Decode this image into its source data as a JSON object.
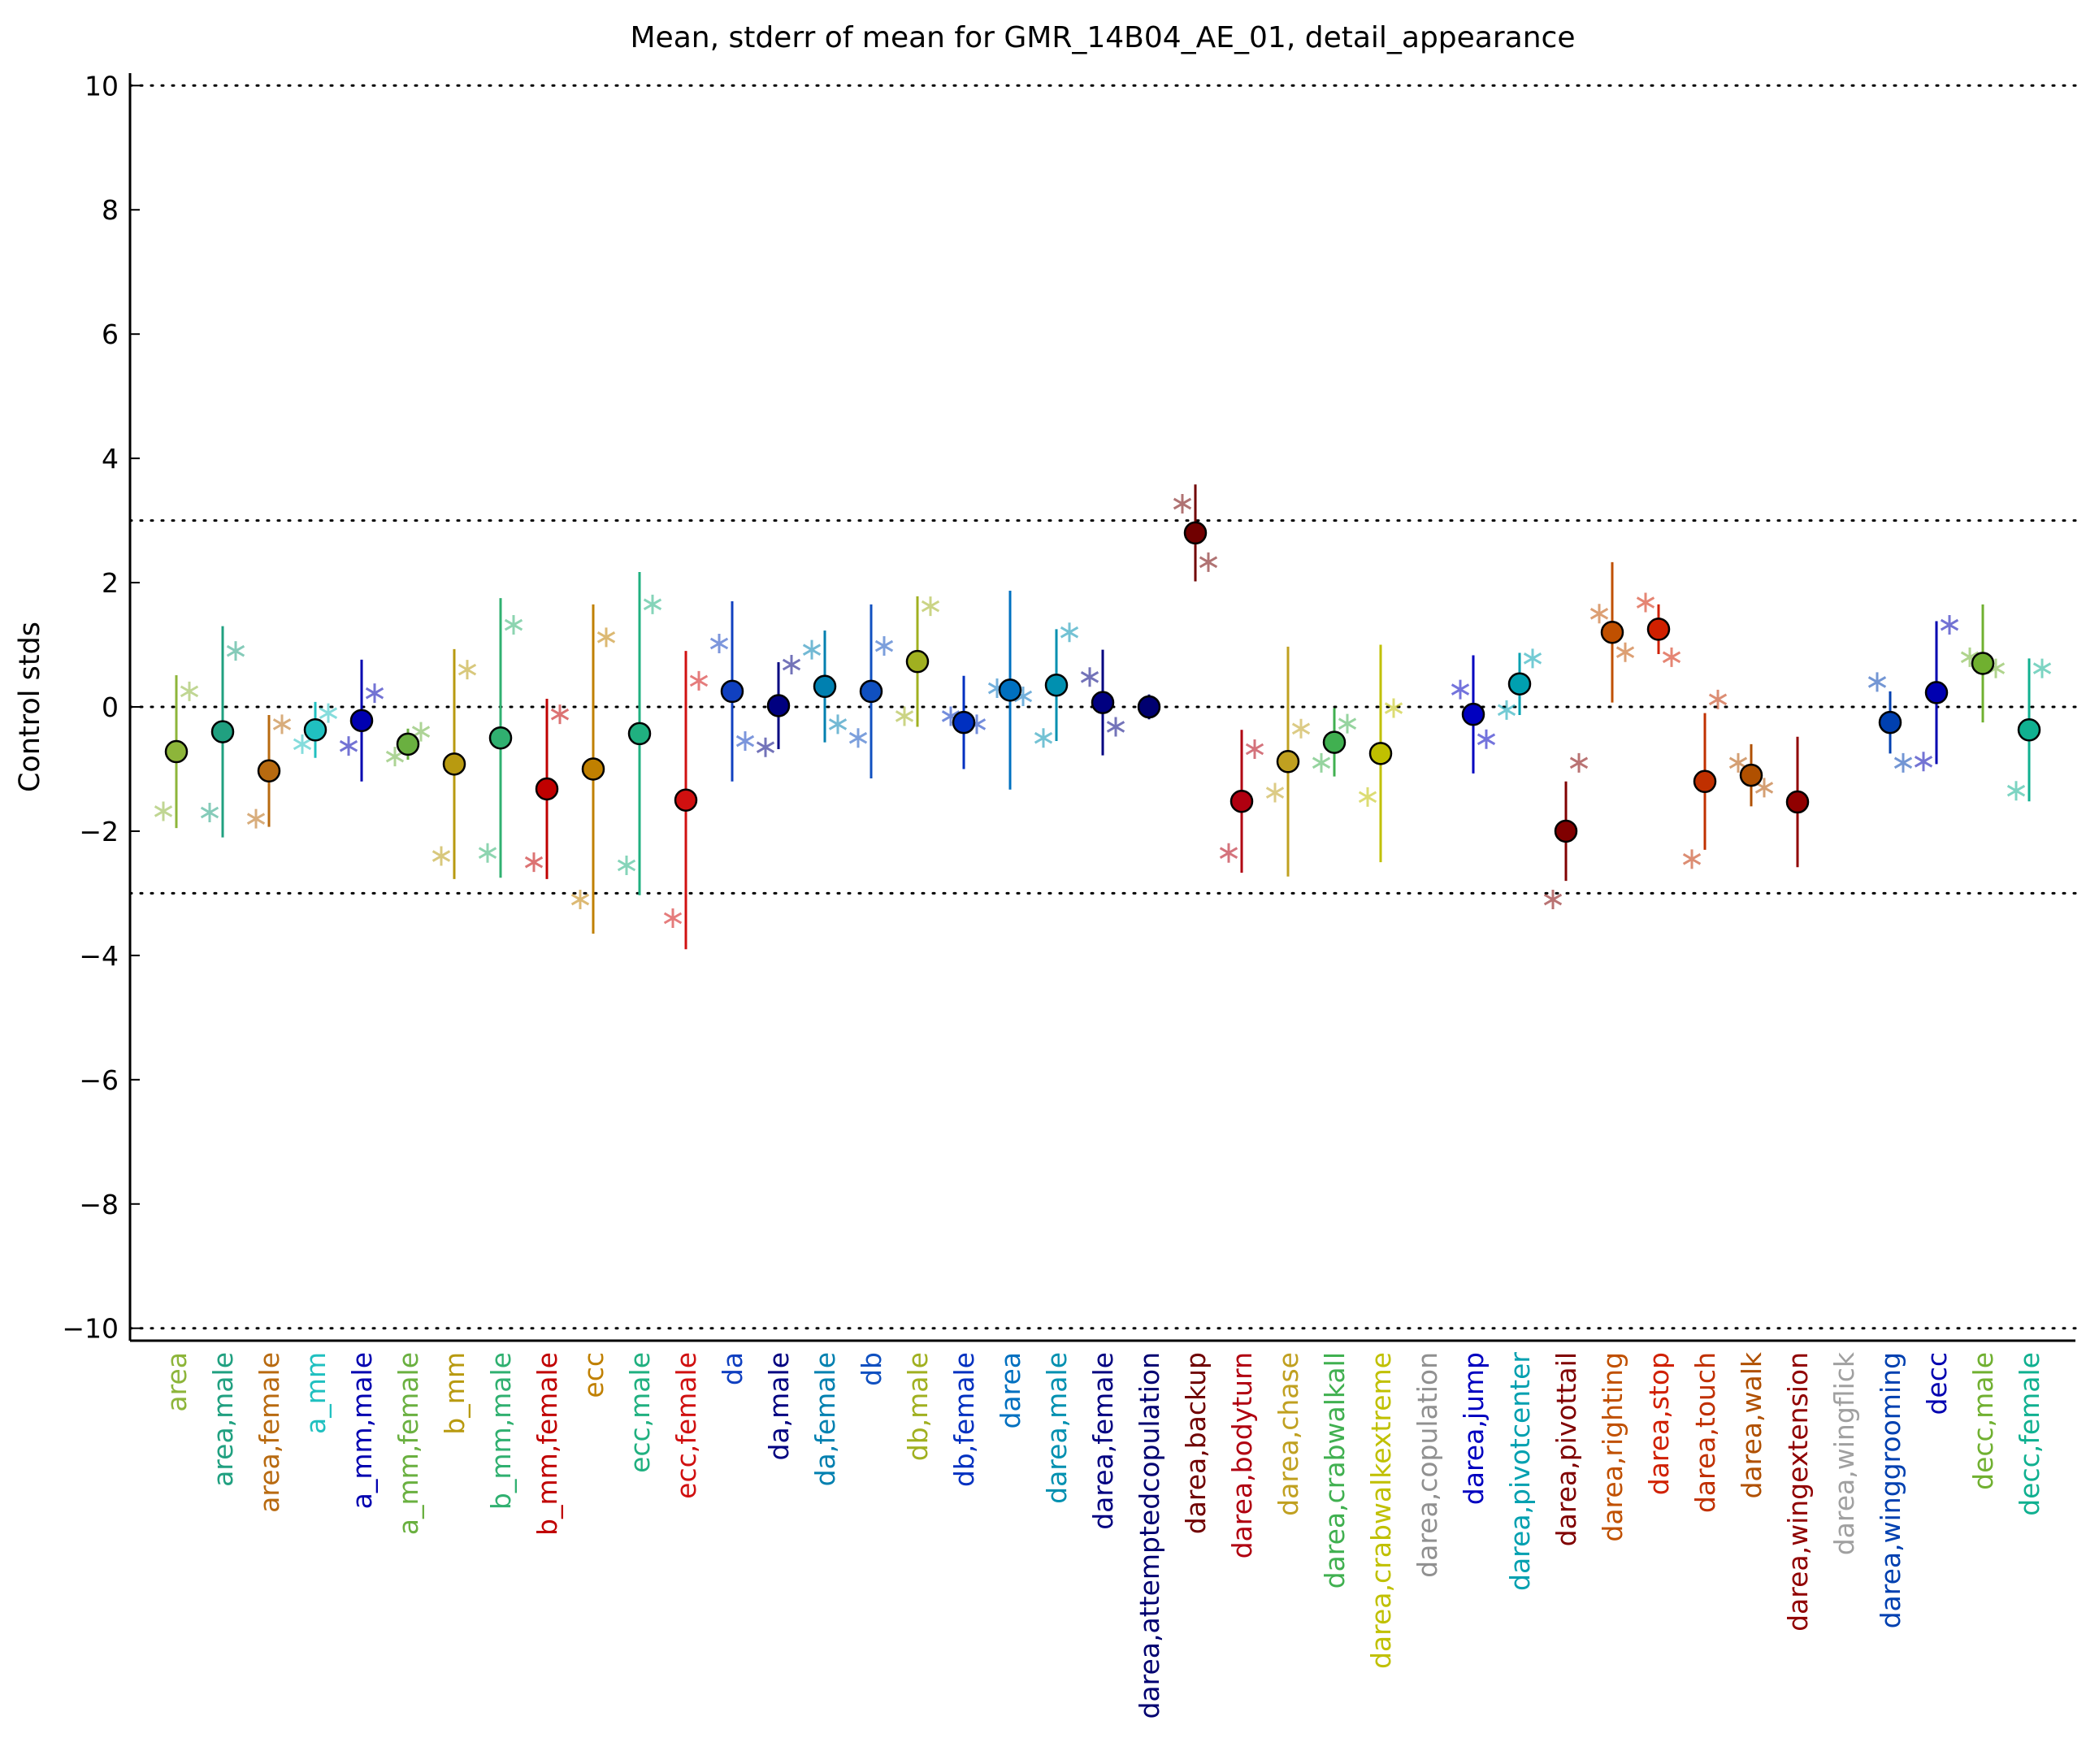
{
  "chart_data": {
    "type": "errorbar",
    "title": "Mean, stderr of mean for GMR_14B04_AE_01, detail_appearance",
    "ylabel": "Control stds",
    "categories": [
      "area",
      "area,male",
      "area,female",
      "a_mm",
      "a_mm,male",
      "a_mm,female",
      "b_mm",
      "b_mm,male",
      "b_mm,female",
      "ecc",
      "ecc,male",
      "ecc,female",
      "da",
      "da,male",
      "da,female",
      "db",
      "db,male",
      "db,female",
      "darea",
      "darea,male",
      "darea,female",
      "darea,attemptedcopulation",
      "darea,backup",
      "darea,bodyturn",
      "darea,chase",
      "darea,crabwalkall",
      "darea,crabwalkextreme",
      "darea,copulation",
      "darea,jump",
      "darea,pivotcenter",
      "darea,pivottail",
      "darea,righting",
      "darea,stop",
      "darea,touch",
      "darea,walk",
      "darea,wingextension",
      "darea,wingflick",
      "darea,winggrooming",
      "decc",
      "decc,male",
      "decc,female"
    ],
    "colors": [
      "#8db53a",
      "#20a080",
      "#b86a10",
      "#20c0c0",
      "#0000b0",
      "#6ab040",
      "#b89a10",
      "#30b070",
      "#c00000",
      "#c08000",
      "#20b080",
      "#d01010",
      "#1040c0",
      "#000080",
      "#0080b0",
      "#1050c0",
      "#a0b020",
      "#0030c0",
      "#0070c0",
      "#0090b0",
      "#000080",
      "#000070",
      "#700000",
      "#b00010",
      "#c0a020",
      "#40b050",
      "#c0c000",
      "#909090",
      "#0000c0",
      "#00a0b0",
      "#800000",
      "#c05000",
      "#d02000",
      "#c03000",
      "#b05000",
      "#900000",
      "#a0a0a0",
      "#0040b0",
      "#0000b0",
      "#70b030",
      "#10b090"
    ],
    "means": [
      -0.72,
      -0.4,
      -1.03,
      -0.37,
      -0.22,
      -0.6,
      -0.92,
      -0.5,
      -1.32,
      -1.0,
      -0.43,
      -1.5,
      0.25,
      0.02,
      0.33,
      0.25,
      0.73,
      -0.25,
      0.27,
      0.35,
      0.07,
      0.0,
      2.8,
      -1.52,
      -0.88,
      -0.57,
      -0.75,
      null,
      -0.12,
      0.37,
      -2.0,
      1.2,
      1.25,
      -1.2,
      -1.1,
      -1.53,
      null,
      -0.25,
      0.23,
      0.7,
      -0.37
    ],
    "errors": [
      1.23,
      1.7,
      0.9,
      0.45,
      0.98,
      0.25,
      1.85,
      2.25,
      1.45,
      2.65,
      2.6,
      2.4,
      1.45,
      0.7,
      0.9,
      1.4,
      1.05,
      0.75,
      1.6,
      0.9,
      0.85,
      0.2,
      0.78,
      1.15,
      1.85,
      0.55,
      1.75,
      null,
      0.95,
      0.5,
      0.8,
      1.13,
      0.4,
      1.1,
      0.5,
      1.05,
      null,
      0.5,
      1.15,
      0.95,
      1.15
    ],
    "stars_left": [
      -1.68,
      -1.7,
      -1.8,
      -0.6,
      -0.63,
      -0.8,
      -2.4,
      -2.35,
      -2.5,
      -3.1,
      -2.55,
      -3.4,
      1.02,
      -0.65,
      0.92,
      -0.5,
      -0.15,
      -0.15,
      0.3,
      -0.5,
      0.48,
      null,
      3.27,
      -2.35,
      -1.38,
      -0.9,
      -1.45,
      null,
      0.28,
      -0.05,
      -3.1,
      1.5,
      1.68,
      -2.45,
      -0.9,
      null,
      null,
      0.4,
      -0.88,
      0.8,
      -1.35
    ],
    "stars_right": [
      0.25,
      0.9,
      -0.28,
      -0.1,
      0.22,
      -0.4,
      0.6,
      1.32,
      -0.12,
      1.12,
      1.65,
      0.42,
      -0.55,
      0.68,
      -0.28,
      0.98,
      1.62,
      -0.28,
      0.17,
      1.2,
      -0.32,
      null,
      2.33,
      -0.68,
      -0.35,
      -0.27,
      -0.02,
      null,
      -0.52,
      0.78,
      -0.9,
      0.88,
      0.8,
      0.12,
      -1.3,
      null,
      null,
      -0.9,
      1.32,
      0.62,
      0.62
    ],
    "xlim": [
      0,
      42
    ],
    "ylim": [
      -10.2,
      10.2
    ],
    "yticks": [
      {
        "value": -10,
        "label": "−10"
      },
      {
        "value": -8,
        "label": "−8"
      },
      {
        "value": -6,
        "label": "−6"
      },
      {
        "value": -4,
        "label": "−4"
      },
      {
        "value": -2,
        "label": "−2"
      },
      0,
      2,
      4,
      6,
      8,
      10
    ],
    "reference_lines": [
      10,
      3,
      0,
      -3,
      -10
    ]
  }
}
